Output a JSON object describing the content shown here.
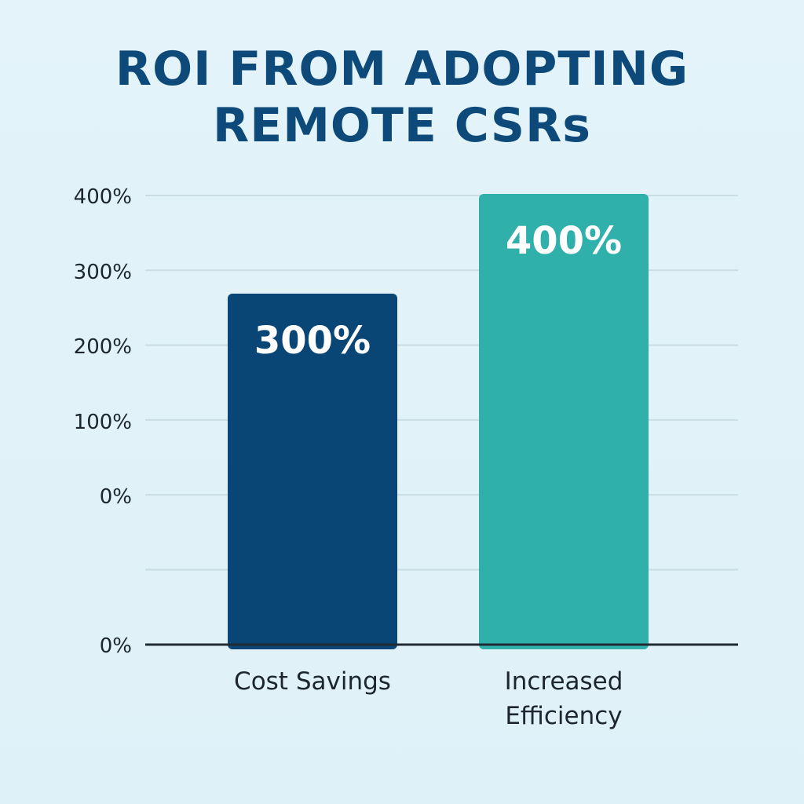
{
  "chart_data": {
    "type": "bar",
    "title": "ROI FROM ADOPTING REMOTE CSRs",
    "title_lines": [
      "ROI FROM ADOPTING",
      "REMOTE CSRs"
    ],
    "categories": [
      "Cost Savings",
      "Increased Efficiency"
    ],
    "category_lines": [
      [
        "Cost Savings"
      ],
      [
        "Increased",
        "Efficiency"
      ]
    ],
    "values": [
      300,
      400
    ],
    "data_labels": [
      "300%",
      "400%"
    ],
    "y_tick_labels": [
      "400%",
      "300%",
      "200%",
      "100%",
      "0%",
      "0%"
    ],
    "xlabel": "",
    "ylabel": "",
    "grid": true,
    "bar_colors": [
      "#0a4675",
      "#30b0ab"
    ]
  }
}
